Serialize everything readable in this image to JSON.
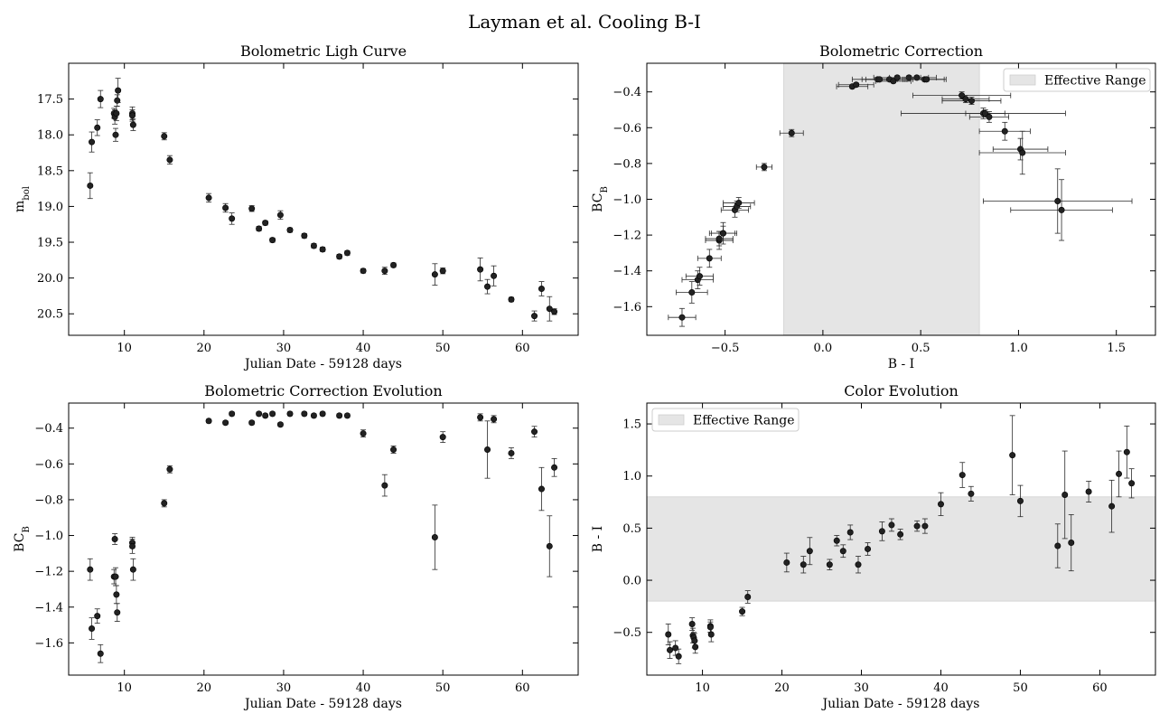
{
  "figure_title": "Layman et al. Cooling B-I",
  "chart_data": [
    {
      "id": "p1",
      "type": "scatter",
      "title": "Bolometric Ligh Curve",
      "xlabel": "Julian Date - 59128 days",
      "ylabel_main": "m",
      "ylabel_sub": "bol",
      "xlim": [
        3,
        67
      ],
      "ylim": [
        20.8,
        17.0
      ],
      "inverted_y": true,
      "xticks": [
        10,
        20,
        30,
        40,
        50,
        60
      ],
      "yticks": [
        17.5,
        18.0,
        18.5,
        19.0,
        19.5,
        20.0,
        20.5
      ],
      "ytick_labels": [
        "17.5",
        "18.0",
        "18.5",
        "19.0",
        "19.5",
        "20.0",
        "20.5"
      ],
      "xtick_labels": [
        "10",
        "20",
        "30",
        "40",
        "50",
        "60"
      ],
      "points": [
        {
          "x": 5.7,
          "y": 18.71,
          "yerr": 0.18
        },
        {
          "x": 5.9,
          "y": 18.1,
          "yerr": 0.14
        },
        {
          "x": 6.6,
          "y": 17.9,
          "yerr": 0.11
        },
        {
          "x": 7.0,
          "y": 17.5,
          "yerr": 0.12
        },
        {
          "x": 8.7,
          "y": 17.7,
          "yerr": 0.07
        },
        {
          "x": 8.8,
          "y": 17.75,
          "yerr": 0.1
        },
        {
          "x": 8.9,
          "y": 18.0,
          "yerr": 0.09
        },
        {
          "x": 9.0,
          "y": 17.7,
          "yerr": 0.1
        },
        {
          "x": 9.1,
          "y": 17.52,
          "yerr": 0.08
        },
        {
          "x": 9.2,
          "y": 17.38,
          "yerr": 0.17
        },
        {
          "x": 11.0,
          "y": 17.7,
          "yerr": 0.09
        },
        {
          "x": 11.0,
          "y": 17.73,
          "yerr": 0.08
        },
        {
          "x": 11.1,
          "y": 17.86,
          "yerr": 0.08
        },
        {
          "x": 15.0,
          "y": 18.02,
          "yerr": 0.05
        },
        {
          "x": 15.7,
          "y": 18.35,
          "yerr": 0.06
        },
        {
          "x": 20.6,
          "y": 18.88,
          "yerr": 0.06
        },
        {
          "x": 22.7,
          "y": 19.02,
          "yerr": 0.06
        },
        {
          "x": 23.5,
          "y": 19.17,
          "yerr": 0.08
        },
        {
          "x": 26.0,
          "y": 19.03,
          "yerr": 0.04
        },
        {
          "x": 26.9,
          "y": 19.31,
          "yerr": 0.03
        },
        {
          "x": 27.7,
          "y": 19.23,
          "yerr": 0.03
        },
        {
          "x": 28.6,
          "y": 19.47,
          "yerr": 0.03
        },
        {
          "x": 29.6,
          "y": 19.12,
          "yerr": 0.06
        },
        {
          "x": 30.8,
          "y": 19.33,
          "yerr": 0.03
        },
        {
          "x": 32.6,
          "y": 19.41,
          "yerr": 0.03
        },
        {
          "x": 33.8,
          "y": 19.55,
          "yerr": 0.03
        },
        {
          "x": 34.9,
          "y": 19.6,
          "yerr": 0.03
        },
        {
          "x": 37.0,
          "y": 19.7,
          "yerr": 0.03
        },
        {
          "x": 38.0,
          "y": 19.65,
          "yerr": 0.03
        },
        {
          "x": 40.0,
          "y": 19.9,
          "yerr": 0.03
        },
        {
          "x": 42.7,
          "y": 19.9,
          "yerr": 0.05
        },
        {
          "x": 43.8,
          "y": 19.82,
          "yerr": 0.03
        },
        {
          "x": 49.0,
          "y": 19.95,
          "yerr": 0.15
        },
        {
          "x": 50.0,
          "y": 19.9,
          "yerr": 0.04
        },
        {
          "x": 54.7,
          "y": 19.88,
          "yerr": 0.16
        },
        {
          "x": 55.6,
          "y": 20.12,
          "yerr": 0.1
        },
        {
          "x": 56.4,
          "y": 19.97,
          "yerr": 0.14
        },
        {
          "x": 58.6,
          "y": 20.3,
          "yerr": 0.03
        },
        {
          "x": 61.5,
          "y": 20.53,
          "yerr": 0.07
        },
        {
          "x": 62.4,
          "y": 20.15,
          "yerr": 0.1
        },
        {
          "x": 63.4,
          "y": 20.43,
          "yerr": 0.17
        },
        {
          "x": 64.0,
          "y": 20.47,
          "yerr": 0.04
        }
      ]
    },
    {
      "id": "p2",
      "type": "scatter",
      "title": "Bolometric Correction",
      "xlabel": "B - I",
      "ylabel_main": "BC",
      "ylabel_sub": "B",
      "xlim": [
        -0.9,
        1.7
      ],
      "ylim": [
        -1.76,
        -0.24
      ],
      "inverted_y": false,
      "xticks": [
        -0.5,
        0.0,
        0.5,
        1.0,
        1.5
      ],
      "xtick_labels": [
        "−0.5",
        "0.0",
        "0.5",
        "1.0",
        "1.5"
      ],
      "yticks": [
        -1.6,
        -1.4,
        -1.2,
        -1.0,
        -0.8,
        -0.6,
        -0.4
      ],
      "ytick_labels": [
        "−1.6",
        "−1.4",
        "−1.2",
        "−1.0",
        "−0.8",
        "−0.6",
        "−0.4"
      ],
      "span": {
        "x0": -0.2,
        "x1": 0.8,
        "label": "Effective Range",
        "color": "#e5e5e5"
      },
      "legend_position": "top-right",
      "points": [
        {
          "x": -0.72,
          "y": -1.66,
          "xerr": 0.07,
          "yerr": 0.05
        },
        {
          "x": -0.67,
          "y": -1.52,
          "xerr": 0.08,
          "yerr": 0.06
        },
        {
          "x": -0.64,
          "y": -1.45,
          "xerr": 0.08,
          "yerr": 0.05
        },
        {
          "x": -0.63,
          "y": -1.43,
          "xerr": 0.07,
          "yerr": 0.05
        },
        {
          "x": -0.58,
          "y": -1.33,
          "xerr": 0.06,
          "yerr": 0.05
        },
        {
          "x": -0.53,
          "y": -1.23,
          "xerr": 0.07,
          "yerr": 0.05
        },
        {
          "x": -0.53,
          "y": -1.22,
          "xerr": 0.07,
          "yerr": 0.04
        },
        {
          "x": -0.51,
          "y": -1.19,
          "xerr": 0.06,
          "yerr": 0.06
        },
        {
          "x": -0.51,
          "y": -1.19,
          "xerr": 0.07,
          "yerr": 0.04
        },
        {
          "x": -0.45,
          "y": -1.06,
          "xerr": 0.07,
          "yerr": 0.04
        },
        {
          "x": -0.44,
          "y": -1.04,
          "xerr": 0.07,
          "yerr": 0.03
        },
        {
          "x": -0.43,
          "y": -1.02,
          "xerr": 0.08,
          "yerr": 0.03
        },
        {
          "x": -0.3,
          "y": -0.82,
          "xerr": 0.04,
          "yerr": 0.02
        },
        {
          "x": -0.16,
          "y": -0.63,
          "xerr": 0.06,
          "yerr": 0.02
        },
        {
          "x": 0.15,
          "y": -0.37,
          "xerr": 0.08,
          "yerr": 0.01
        },
        {
          "x": 0.17,
          "y": -0.36,
          "xerr": 0.09,
          "yerr": 0.01
        },
        {
          "x": 0.28,
          "y": -0.33,
          "xerr": 0.13,
          "yerr": 0.01
        },
        {
          "x": 0.29,
          "y": -0.33,
          "xerr": 0.09,
          "yerr": 0.01
        },
        {
          "x": 0.34,
          "y": -0.33,
          "xerr": 0.12,
          "yerr": 0.01
        },
        {
          "x": 0.36,
          "y": -0.34,
          "xerr": 0.09,
          "yerr": 0.01
        },
        {
          "x": 0.38,
          "y": -0.32,
          "xerr": 0.12,
          "yerr": 0.01
        },
        {
          "x": 0.44,
          "y": -0.32,
          "xerr": 0.1,
          "yerr": 0.01
        },
        {
          "x": 0.48,
          "y": -0.32,
          "xerr": 0.1,
          "yerr": 0.01
        },
        {
          "x": 0.52,
          "y": -0.33,
          "xerr": 0.1,
          "yerr": 0.01
        },
        {
          "x": 0.53,
          "y": -0.33,
          "xerr": 0.1,
          "yerr": 0.01
        },
        {
          "x": 0.71,
          "y": -0.42,
          "xerr": 0.25,
          "yerr": 0.02
        },
        {
          "x": 0.73,
          "y": -0.44,
          "xerr": 0.12,
          "yerr": 0.02
        },
        {
          "x": 0.76,
          "y": -0.45,
          "xerr": 0.15,
          "yerr": 0.02
        },
        {
          "x": 0.82,
          "y": -0.52,
          "xerr": 0.42,
          "yerr": 0.03
        },
        {
          "x": 0.83,
          "y": -0.52,
          "xerr": 0.1,
          "yerr": 0.02
        },
        {
          "x": 0.85,
          "y": -0.54,
          "xerr": 0.1,
          "yerr": 0.03
        },
        {
          "x": 0.93,
          "y": -0.62,
          "xerr": 0.13,
          "yerr": 0.05
        },
        {
          "x": 1.01,
          "y": -0.72,
          "xerr": 0.14,
          "yerr": 0.06
        },
        {
          "x": 1.02,
          "y": -0.74,
          "xerr": 0.22,
          "yerr": 0.12
        },
        {
          "x": 1.2,
          "y": -1.01,
          "xerr": 0.38,
          "yerr": 0.18
        },
        {
          "x": 1.22,
          "y": -1.06,
          "xerr": 0.26,
          "yerr": 0.17
        }
      ]
    },
    {
      "id": "p3",
      "type": "scatter",
      "title": "Bolometric Correction Evolution",
      "xlabel": "Julian Date - 59128 days",
      "ylabel_main": "BC",
      "ylabel_sub": "B",
      "xlim": [
        3,
        67
      ],
      "ylim": [
        -1.78,
        -0.26
      ],
      "inverted_y": false,
      "xticks": [
        10,
        20,
        30,
        40,
        50,
        60
      ],
      "xtick_labels": [
        "10",
        "20",
        "30",
        "40",
        "50",
        "60"
      ],
      "yticks": [
        -1.6,
        -1.4,
        -1.2,
        -1.0,
        -0.8,
        -0.6,
        -0.4
      ],
      "ytick_labels": [
        "−1.6",
        "−1.4",
        "−1.2",
        "−1.0",
        "−0.8",
        "−0.6",
        "−0.4"
      ],
      "points": [
        {
          "x": 5.7,
          "y": -1.19,
          "yerr": 0.06
        },
        {
          "x": 5.9,
          "y": -1.52,
          "yerr": 0.06
        },
        {
          "x": 6.6,
          "y": -1.45,
          "yerr": 0.04
        },
        {
          "x": 7.0,
          "y": -1.66,
          "yerr": 0.05
        },
        {
          "x": 8.7,
          "y": -1.23,
          "yerr": 0.04
        },
        {
          "x": 8.8,
          "y": -1.02,
          "yerr": 0.03
        },
        {
          "x": 8.9,
          "y": -1.23,
          "yerr": 0.05
        },
        {
          "x": 9.0,
          "y": -1.33,
          "yerr": 0.05
        },
        {
          "x": 9.1,
          "y": -1.43,
          "yerr": 0.05
        },
        {
          "x": 11.0,
          "y": -1.04,
          "yerr": 0.03
        },
        {
          "x": 11.0,
          "y": -1.06,
          "yerr": 0.04
        },
        {
          "x": 11.1,
          "y": -1.19,
          "yerr": 0.06
        },
        {
          "x": 15.0,
          "y": -0.82,
          "yerr": 0.02
        },
        {
          "x": 15.7,
          "y": -0.63,
          "yerr": 0.02
        },
        {
          "x": 20.6,
          "y": -0.36,
          "yerr": 0.01
        },
        {
          "x": 22.7,
          "y": -0.37,
          "yerr": 0.01
        },
        {
          "x": 23.5,
          "y": -0.32,
          "yerr": 0.01
        },
        {
          "x": 26.0,
          "y": -0.37,
          "yerr": 0.01
        },
        {
          "x": 26.9,
          "y": -0.32,
          "yerr": 0.01
        },
        {
          "x": 27.7,
          "y": -0.33,
          "yerr": 0.01
        },
        {
          "x": 28.6,
          "y": -0.32,
          "yerr": 0.01
        },
        {
          "x": 29.6,
          "y": -0.38,
          "yerr": 0.01
        },
        {
          "x": 30.8,
          "y": -0.32,
          "yerr": 0.01
        },
        {
          "x": 32.6,
          "y": -0.32,
          "yerr": 0.01
        },
        {
          "x": 33.8,
          "y": -0.33,
          "yerr": 0.01
        },
        {
          "x": 34.9,
          "y": -0.32,
          "yerr": 0.01
        },
        {
          "x": 37.0,
          "y": -0.33,
          "yerr": 0.01
        },
        {
          "x": 38.0,
          "y": -0.33,
          "yerr": 0.01
        },
        {
          "x": 40.0,
          "y": -0.43,
          "yerr": 0.02
        },
        {
          "x": 42.7,
          "y": -0.72,
          "yerr": 0.06
        },
        {
          "x": 43.8,
          "y": -0.52,
          "yerr": 0.02
        },
        {
          "x": 49.0,
          "y": -1.01,
          "yerr": 0.18
        },
        {
          "x": 50.0,
          "y": -0.45,
          "yerr": 0.03
        },
        {
          "x": 54.7,
          "y": -0.34,
          "yerr": 0.02
        },
        {
          "x": 55.6,
          "y": -0.52,
          "yerr": 0.16
        },
        {
          "x": 56.4,
          "y": -0.35,
          "yerr": 0.02
        },
        {
          "x": 58.6,
          "y": -0.54,
          "yerr": 0.03
        },
        {
          "x": 61.5,
          "y": -0.42,
          "yerr": 0.03
        },
        {
          "x": 62.4,
          "y": -0.74,
          "yerr": 0.12
        },
        {
          "x": 63.4,
          "y": -1.06,
          "yerr": 0.17
        },
        {
          "x": 64.0,
          "y": -0.62,
          "yerr": 0.05
        }
      ]
    },
    {
      "id": "p4",
      "type": "scatter",
      "title": "Color Evolution",
      "xlabel": "Julian Date - 59128 days",
      "ylabel_main": "B - I",
      "ylabel_sub": "",
      "xlim": [
        3,
        67
      ],
      "ylim": [
        -0.91,
        1.7
      ],
      "inverted_y": false,
      "xticks": [
        10,
        20,
        30,
        40,
        50,
        60
      ],
      "xtick_labels": [
        "10",
        "20",
        "30",
        "40",
        "50",
        "60"
      ],
      "yticks": [
        -0.5,
        0.0,
        0.5,
        1.0,
        1.5
      ],
      "ytick_labels": [
        "−0.5",
        "0.0",
        "0.5",
        "1.0",
        "1.5"
      ],
      "hspan": {
        "y0": -0.2,
        "y1": 0.8,
        "label": "Effective Range",
        "color": "#e5e5e5"
      },
      "legend_position": "top-left",
      "points": [
        {
          "x": 5.7,
          "y": -0.52,
          "yerr": 0.1
        },
        {
          "x": 5.9,
          "y": -0.67,
          "yerr": 0.08
        },
        {
          "x": 6.6,
          "y": -0.65,
          "yerr": 0.07
        },
        {
          "x": 7.0,
          "y": -0.73,
          "yerr": 0.07
        },
        {
          "x": 8.7,
          "y": -0.42,
          "yerr": 0.06
        },
        {
          "x": 8.8,
          "y": -0.53,
          "yerr": 0.07
        },
        {
          "x": 8.9,
          "y": -0.55,
          "yerr": 0.05
        },
        {
          "x": 9.0,
          "y": -0.58,
          "yerr": 0.07
        },
        {
          "x": 9.1,
          "y": -0.64,
          "yerr": 0.06
        },
        {
          "x": 11.0,
          "y": -0.44,
          "yerr": 0.06
        },
        {
          "x": 11.0,
          "y": -0.45,
          "yerr": 0.05
        },
        {
          "x": 11.1,
          "y": -0.52,
          "yerr": 0.07
        },
        {
          "x": 15.0,
          "y": -0.3,
          "yerr": 0.04
        },
        {
          "x": 15.7,
          "y": -0.16,
          "yerr": 0.06
        },
        {
          "x": 20.6,
          "y": 0.17,
          "yerr": 0.09
        },
        {
          "x": 22.7,
          "y": 0.15,
          "yerr": 0.08
        },
        {
          "x": 23.5,
          "y": 0.28,
          "yerr": 0.13
        },
        {
          "x": 26.0,
          "y": 0.15,
          "yerr": 0.05
        },
        {
          "x": 26.9,
          "y": 0.38,
          "yerr": 0.05
        },
        {
          "x": 27.7,
          "y": 0.28,
          "yerr": 0.06
        },
        {
          "x": 28.6,
          "y": 0.46,
          "yerr": 0.07
        },
        {
          "x": 29.6,
          "y": 0.15,
          "yerr": 0.08
        },
        {
          "x": 30.8,
          "y": 0.3,
          "yerr": 0.06
        },
        {
          "x": 32.6,
          "y": 0.47,
          "yerr": 0.09
        },
        {
          "x": 33.8,
          "y": 0.53,
          "yerr": 0.06
        },
        {
          "x": 34.9,
          "y": 0.44,
          "yerr": 0.05
        },
        {
          "x": 37.0,
          "y": 0.52,
          "yerr": 0.05
        },
        {
          "x": 38.0,
          "y": 0.52,
          "yerr": 0.07
        },
        {
          "x": 40.0,
          "y": 0.73,
          "yerr": 0.11
        },
        {
          "x": 42.7,
          "y": 1.01,
          "yerr": 0.12
        },
        {
          "x": 43.8,
          "y": 0.83,
          "yerr": 0.07
        },
        {
          "x": 49.0,
          "y": 1.2,
          "yerr": 0.38
        },
        {
          "x": 50.0,
          "y": 0.76,
          "yerr": 0.15
        },
        {
          "x": 54.7,
          "y": 0.33,
          "yerr": 0.21
        },
        {
          "x": 55.6,
          "y": 0.82,
          "yerr": 0.42
        },
        {
          "x": 56.4,
          "y": 0.36,
          "yerr": 0.27
        },
        {
          "x": 58.6,
          "y": 0.85,
          "yerr": 0.1
        },
        {
          "x": 61.5,
          "y": 0.71,
          "yerr": 0.25
        },
        {
          "x": 62.4,
          "y": 1.02,
          "yerr": 0.22
        },
        {
          "x": 63.4,
          "y": 1.23,
          "yerr": 0.25
        },
        {
          "x": 64.0,
          "y": 0.93,
          "yerr": 0.14
        }
      ]
    }
  ]
}
